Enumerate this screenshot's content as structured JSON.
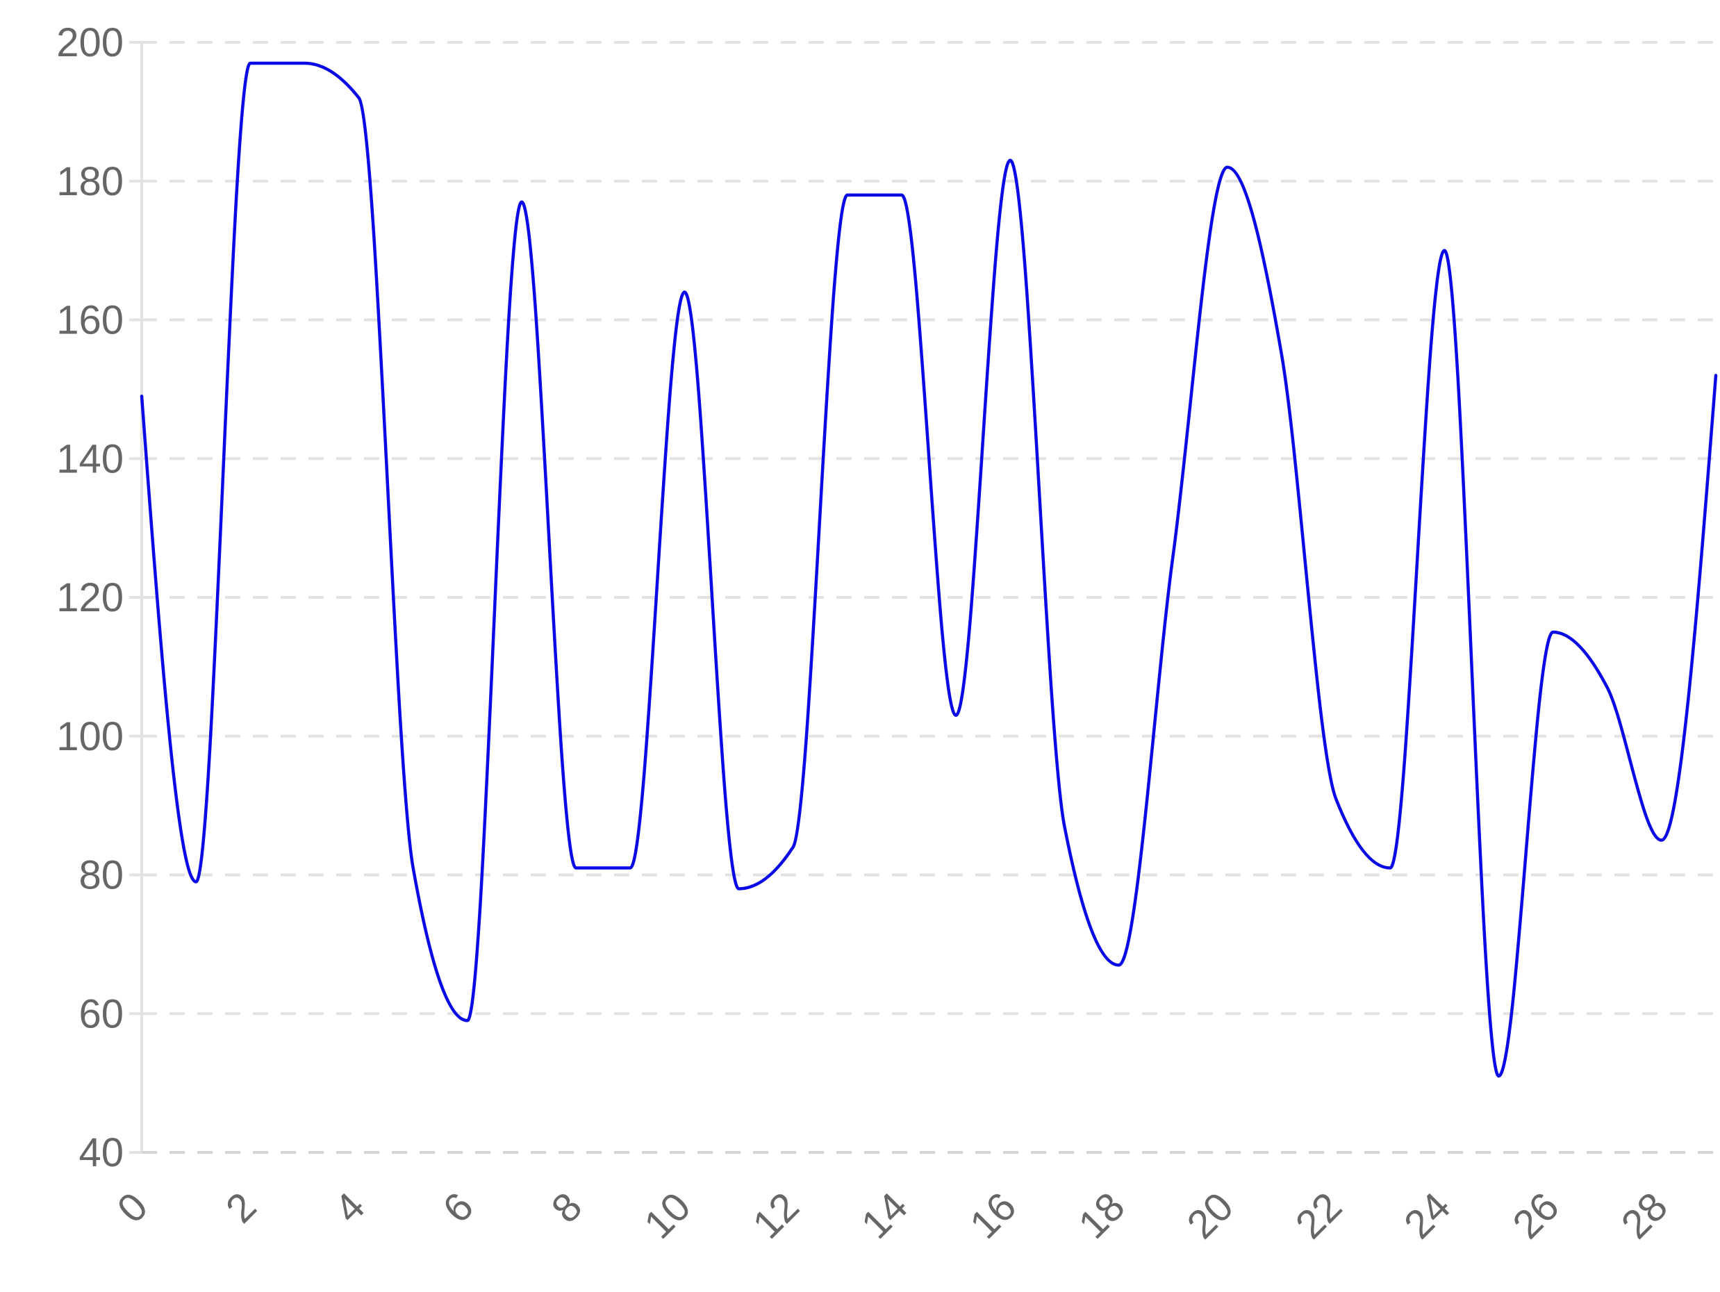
{
  "chart_data": {
    "type": "line",
    "title": "",
    "xlabel": "",
    "ylabel": "",
    "x": [
      0,
      1,
      2,
      3,
      4,
      5,
      6,
      7,
      8,
      9,
      10,
      11,
      12,
      13,
      14,
      15,
      16,
      17,
      18,
      19,
      20,
      21,
      22,
      23,
      24,
      25,
      26,
      27,
      28,
      29
    ],
    "series": [
      {
        "color": "#0a0ae6",
        "values": [
          149,
          79,
          197,
          197,
          192,
          81,
          59,
          177,
          81,
          81,
          164,
          78,
          84,
          178,
          178,
          103,
          183,
          87,
          67,
          126,
          182,
          155,
          91,
          81,
          170,
          51,
          115,
          107,
          85,
          152
        ]
      }
    ],
    "ylim": [
      40,
      200
    ],
    "y_ticks": [
      "40",
      "60",
      "80",
      "100",
      "120",
      "140",
      "160",
      "180",
      "200"
    ],
    "x_ticks": [
      "0",
      "2",
      "4",
      "6",
      "8",
      "10",
      "12",
      "14",
      "16",
      "18",
      "20",
      "22",
      "24",
      "26",
      "28"
    ],
    "grid": "horizontal-dashed",
    "legend": "none"
  }
}
